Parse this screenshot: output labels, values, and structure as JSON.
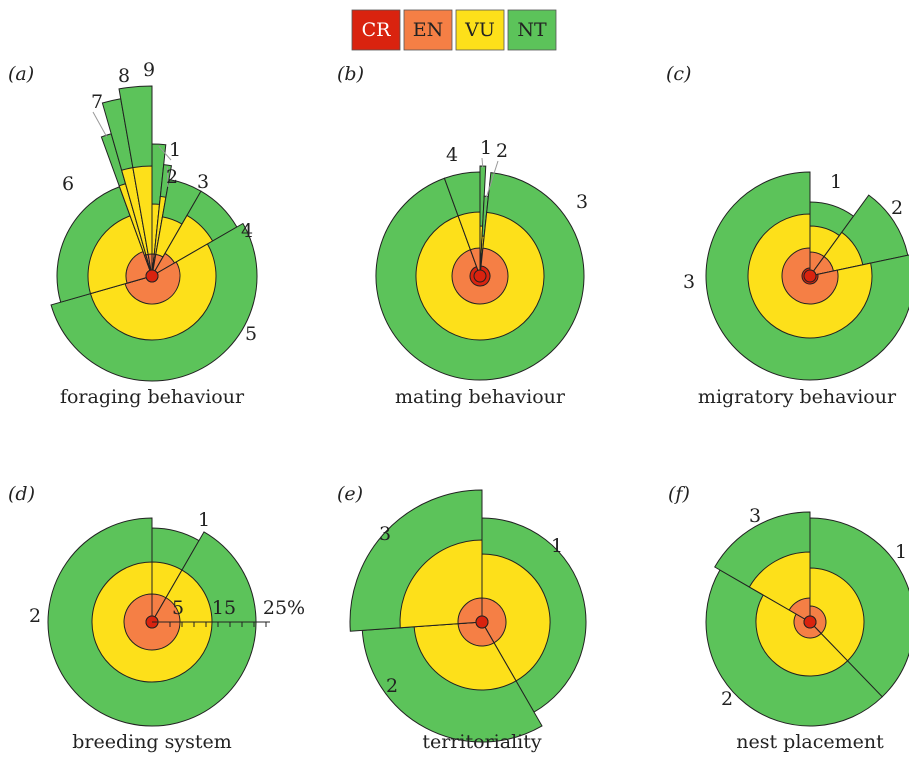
{
  "legend": [
    {
      "label": "CR",
      "color": "#d9230f"
    },
    {
      "label": "EN",
      "color": "#f57f45"
    },
    {
      "label": "VU",
      "color": "#fde01a"
    },
    {
      "label": "NT",
      "color": "#5cc35a"
    }
  ],
  "chart_data": [
    {
      "type": "polar-area",
      "panel": "(a)",
      "title": "foraging behaviour",
      "unit": "%",
      "categories": [
        {
          "label": "1",
          "start": 0,
          "end": 6,
          "CR": 0,
          "EN": 0,
          "VU": 0,
          "NT": 0
        },
        {
          "label": "2",
          "start": 6,
          "end": 10,
          "CR": 0,
          "EN": 0,
          "VU": 0,
          "NT": 0
        },
        {
          "label": "3",
          "start": 10,
          "end": 30,
          "CR": 0,
          "EN": 0,
          "VU": 0,
          "NT": 0
        },
        {
          "label": "4",
          "start": 30,
          "end": 60,
          "CR": 0,
          "EN": 0,
          "VU": 0,
          "NT": 0
        },
        {
          "label": "5",
          "start": 60,
          "end": 254,
          "CR": 0,
          "EN": 0,
          "VU": 0,
          "NT": 0
        },
        {
          "label": "6",
          "start": 254,
          "end": 340,
          "CR": 0,
          "EN": 0,
          "VU": 0,
          "NT": 0
        },
        {
          "label": "7",
          "start": 340,
          "end": 344,
          "CR": 0,
          "EN": 0,
          "VU": 0,
          "NT": 0
        },
        {
          "label": "8",
          "start": 344,
          "end": 350,
          "CR": 0,
          "EN": 0,
          "VU": 0,
          "NT": 0
        },
        {
          "label": "9",
          "start": 350,
          "end": 360,
          "CR": 0,
          "EN": 0,
          "VU": 0,
          "NT": 0
        }
      ]
    },
    {
      "type": "polar-area",
      "panel": "(b)",
      "title": "mating behaviour",
      "unit": "%",
      "categories": [
        {
          "label": "1",
          "start": 0,
          "end": 3,
          "CR": 0,
          "EN": 0,
          "VU": 0,
          "NT": 0
        },
        {
          "label": "2",
          "start": 3,
          "end": 6,
          "CR": 0,
          "EN": 0,
          "VU": 0,
          "NT": 0
        },
        {
          "label": "3",
          "start": 6,
          "end": 340,
          "CR": 0,
          "EN": 0,
          "VU": 0,
          "NT": 0
        },
        {
          "label": "4",
          "start": 340,
          "end": 360,
          "CR": 0,
          "EN": 0,
          "VU": 0,
          "NT": 0
        }
      ]
    },
    {
      "type": "polar-area",
      "panel": "(c)",
      "title": "migratory behaviour",
      "unit": "%",
      "categories": [
        {
          "label": "1",
          "start": 0,
          "end": 36,
          "CR": 0,
          "EN": 0,
          "VU": 0,
          "NT": 0
        },
        {
          "label": "2",
          "start": 36,
          "end": 78,
          "CR": 0,
          "EN": 0,
          "VU": 0,
          "NT": 0
        },
        {
          "label": "3",
          "start": 78,
          "end": 360,
          "CR": 0,
          "EN": 0,
          "VU": 0,
          "NT": 0
        }
      ]
    },
    {
      "type": "polar-area",
      "panel": "(d)",
      "title": "breeding system",
      "unit": "%",
      "axis_ticks": [
        "5",
        "15",
        "25%"
      ],
      "categories": [
        {
          "label": "1",
          "start": 0,
          "end": 30,
          "CR": 0,
          "EN": 0,
          "VU": 0,
          "NT": 0
        },
        {
          "label": "2",
          "start": 30,
          "end": 360,
          "CR": 0,
          "EN": 0,
          "VU": 0,
          "NT": 0
        }
      ]
    },
    {
      "type": "polar-area",
      "panel": "(e)",
      "title": "territoriality",
      "unit": "%",
      "categories": [
        {
          "label": "1",
          "start": 0,
          "end": 150,
          "CR": 0,
          "EN": 0,
          "VU": 0,
          "NT": 0
        },
        {
          "label": "2",
          "start": 150,
          "end": 266,
          "CR": 0,
          "EN": 0,
          "VU": 0,
          "NT": 0
        },
        {
          "label": "3",
          "start": 266,
          "end": 360,
          "CR": 0,
          "EN": 0,
          "VU": 0,
          "NT": 0
        }
      ]
    },
    {
      "type": "polar-area",
      "panel": "(f)",
      "title": "nest placement",
      "unit": "%",
      "categories": [
        {
          "label": "1",
          "start": 0,
          "end": 136,
          "CR": 0,
          "EN": 0,
          "VU": 0,
          "NT": 0
        },
        {
          "label": "2",
          "start": 136,
          "end": 300,
          "CR": 0,
          "EN": 0,
          "VU": 0,
          "NT": 0
        },
        {
          "label": "3",
          "start": 300,
          "end": 360,
          "CR": 0,
          "EN": 0,
          "VU": 0,
          "NT": 0
        }
      ]
    }
  ]
}
